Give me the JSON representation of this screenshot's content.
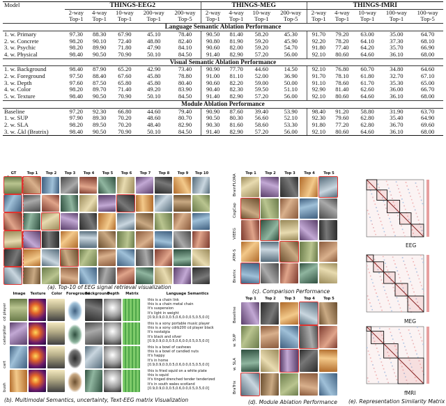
{
  "table": {
    "model_header": "Model",
    "datasets": [
      "THINGS-EEG2",
      "THINGS-MEG",
      "THINGS-fMRI"
    ],
    "ways": [
      [
        "2-way",
        "4-way",
        "10-way",
        "200-way",
        "200-way"
      ],
      [
        "2-way",
        "4-way",
        "10-way",
        "200-way"
      ],
      [
        "2-way",
        "4-way",
        "10-way",
        "100-way",
        "100-way"
      ]
    ],
    "metrics": [
      [
        "Top-1",
        "Top-1",
        "Top-1",
        "Top-1",
        "Top-5"
      ],
      [
        "Top-1",
        "Top-1",
        "Top-1",
        "Top-5"
      ],
      [
        "Top-1",
        "Top-1",
        "Top-1",
        "Top-1",
        "Top-5"
      ]
    ],
    "sections": [
      {
        "title": "Language Semantic Ablation Performance",
        "rows": [
          {
            "model": "1. w. Primary",
            "values": [
              "97.30",
              "88.30",
              "67.90",
              "45.10",
              "78.40",
              "90.50",
              "81.40",
              "58.20",
              "45.30",
              "91.70",
              "79.20",
              "63.00",
              "35.00",
              "64.70"
            ]
          },
          {
            "model": "2. w. Concrete",
            "values": [
              "98.20",
              "90.10",
              "72.40",
              "48.80",
              "82.40",
              "90.80",
              "81.90",
              "59.20",
              "45.90",
              "92.20",
              "78.20",
              "64.10",
              "37.30",
              "68.10"
            ]
          },
          {
            "model": "3. w. Psychic",
            "values": [
              "98.20",
              "89.90",
              "71.80",
              "47.90",
              "84.10",
              "90.60",
              "82.00",
              "59.20",
              "54.70",
              "91.80",
              "77.40",
              "64.20",
              "35.70",
              "66.90"
            ]
          },
          {
            "model": "4. w. Physical",
            "values": [
              "98.40",
              "90.50",
              "70.90",
              "50.10",
              "84.50",
              "91.40",
              "82.90",
              "57.20",
              "56.00",
              "92.10",
              "80.60",
              "64.60",
              "36.10",
              "68.00"
            ]
          }
        ]
      },
      {
        "title": "Visual Semantic Ablation Performance",
        "rows": [
          {
            "model": "1. w. Background",
            "values": [
              "98.40",
              "87.90",
              "65.20",
              "42.90",
              "73.40",
              "90.90",
              "77.70",
              "44.60",
              "14.50",
              "92.10",
              "76.80",
              "60.70",
              "34.80",
              "64.60"
            ]
          },
          {
            "model": "2. w. Foreground",
            "values": [
              "97.50",
              "88.40",
              "67.60",
              "45.80",
              "78.80",
              "91.00",
              "81.10",
              "52.00",
              "36.90",
              "91.70",
              "78.10",
              "61.80",
              "32.70",
              "67.10"
            ]
          },
          {
            "model": "3. w. Depth",
            "values": [
              "97.60",
              "87.50",
              "65.80",
              "45.80",
              "80.40",
              "90.60",
              "82.20",
              "59.00",
              "50.00",
              "91.10",
              "78.60",
              "61.70",
              "35.30",
              "65.00"
            ]
          },
          {
            "model": "4. w. Color",
            "values": [
              "98.20",
              "89.70",
              "71.40",
              "49.20",
              "83.90",
              "90.40",
              "82.30",
              "59.50",
              "51.10",
              "92.90",
              "81.40",
              "62.60",
              "36.00",
              "66.70"
            ]
          },
          {
            "model": "5. w. Texture",
            "values": [
              "98.40",
              "90.50",
              "70.90",
              "50.10",
              "84.50",
              "91.40",
              "82.90",
              "57.20",
              "56.00",
              "92.10",
              "80.60",
              "64.60",
              "36.10",
              "68.00"
            ]
          }
        ]
      },
      {
        "title": "Module Ablation Performance",
        "rows": [
          {
            "model": "Baseline",
            "values": [
              "97.20",
              "92.30",
              "66.80",
              "44.60",
              "79.40",
              "90.90",
              "87.60",
              "39.40",
              "53.90",
              "98.40",
              "91.20",
              "58.80",
              "31.90",
              "63.70"
            ]
          },
          {
            "model": "1. w. SUP",
            "values": [
              "97.90",
              "89.30",
              "70.20",
              "48.60",
              "80.70",
              "90.50",
              "80.30",
              "56.60",
              "52.10",
              "92.30",
              "79.60",
              "62.80",
              "35.40",
              "64.90"
            ]
          },
          {
            "model": "2. w. SLA",
            "values": [
              "98.20",
              "89.50",
              "70.20",
              "48.40",
              "82.90",
              "90.30",
              "81.60",
              "58.60",
              "53.30",
              "91.80",
              "77.20",
              "62.80",
              "36.70",
              "69.60"
            ]
          },
          {
            "model": "3. w. ℒkl (Bratrix)",
            "values": [
              "98.40",
              "90.50",
              "70.90",
              "50.10",
              "84.50",
              "91.40",
              "82.90",
              "57.20",
              "56.00",
              "92.10",
              "80.60",
              "64.60",
              "36.10",
              "68.00"
            ]
          }
        ]
      }
    ]
  },
  "panel_a": {
    "headers": [
      "GT Image",
      "Top 1",
      "Top 2",
      "Top 3",
      "Top 4",
      "Top 5",
      "Top 6",
      "Top 7",
      "Top 8",
      "Top 9",
      "Top 10"
    ],
    "caption": "(a). Top-10 of EEG signal retrieval visualization"
  },
  "panel_b": {
    "headers": [
      "Image",
      "Texture",
      "Color",
      "Foreground",
      "Background",
      "Depth",
      "Matrix",
      "Language Semantics"
    ],
    "row_labels": [
      "cd player",
      "caterpillar",
      "cart",
      "bush"
    ],
    "semantics": [
      [
        "this is a chain link",
        "this is a chain metal chain",
        "It's suspension",
        "It's light in weight",
        "[0.9,0.9,0.0,0.5,0.6,0.0,0.5,0.5,0.0]"
      ],
      [
        "this is a sony portable music player",
        "this is a sony cdrb200 cd player black",
        "It's nostalgia",
        "It's black and silver",
        "[0.9,0.9,0.0,0.5,0.6,0.0,0.5,0.5,0.0]"
      ],
      [
        "this is a bowl of cashews",
        "this is a bowl of candied nuts",
        "It's happy",
        "It's in home",
        "[0.9,0.9,0.0,0.5,0.6,0.0,0.5,0.5,0.0]"
      ],
      [
        "this is fried squid on a white plate",
        "this is squid",
        "It's tinged drenched tender tenderized",
        "It's in south wales scotland",
        "[0.9,0.9,0.0,0.5,0.6,0.0,0.5,0.5,0.0]"
      ]
    ],
    "caption": "(b). Multimodal Semantics, uncertainty, Text-EEG matrix Visualization"
  },
  "panel_c": {
    "headers": [
      "Top 1",
      "Top 2",
      "Top 3",
      "Top 4",
      "Top 5"
    ],
    "row_labels": [
      "BrainFLORA",
      "CogCap",
      "VIEEG",
      "ATM-S",
      "Bratrix"
    ],
    "caption": "(c). Comparison Performance"
  },
  "panel_d": {
    "headers": [
      "Top 1",
      "Top 2",
      "Top 3",
      "Top 4",
      "Top 5"
    ],
    "row_labels": [
      "Baseline",
      "w. SUP",
      "w. SLA",
      "BraTrix"
    ],
    "caption": "(d). Module Ablation Performance"
  },
  "panel_e": {
    "labels": [
      "EEG",
      "MEG",
      "fMRI"
    ],
    "caption": "(e). Representation Similarity Matrix"
  },
  "colors": {
    "highlight_red": "#e0332f",
    "dashed_red": "#d94040",
    "matrix_pink": "#f2b6b6",
    "matrix_blue": "#a9c6e8",
    "caption_text": "#111111"
  }
}
